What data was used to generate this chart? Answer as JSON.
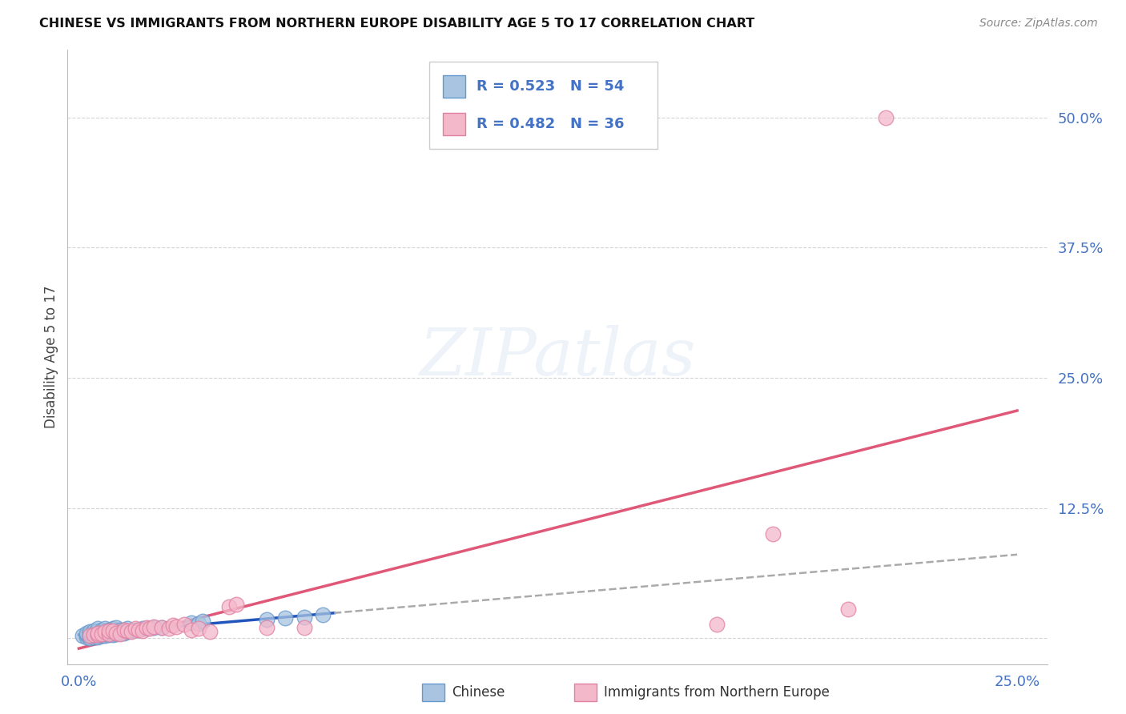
{
  "title": "CHINESE VS IMMIGRANTS FROM NORTHERN EUROPE DISABILITY AGE 5 TO 17 CORRELATION CHART",
  "source": "Source: ZipAtlas.com",
  "ylabel": "Disability Age 5 to 17",
  "xlim": [
    -0.003,
    0.258
  ],
  "ylim": [
    -0.025,
    0.565
  ],
  "xticks": [
    0.0,
    0.05,
    0.1,
    0.15,
    0.2,
    0.25
  ],
  "xticklabels": [
    "0.0%",
    "",
    "",
    "",
    "",
    "25.0%"
  ],
  "yticks": [
    0.0,
    0.125,
    0.25,
    0.375,
    0.5
  ],
  "yticklabels": [
    "",
    "12.5%",
    "25.0%",
    "37.5%",
    "50.0%"
  ],
  "background_color": "#ffffff",
  "grid_color": "#d0d0d0",
  "chinese_face": "#a8c4e0",
  "chinese_edge": "#6699cc",
  "ne_face": "#f4b8cb",
  "ne_edge": "#e080a0",
  "blue_line_color": "#2255bb",
  "pink_line_color": "#e05878",
  "dash_line_color": "#aaaaaa",
  "tick_color": "#4472c4",
  "chinese_x": [
    0.001,
    0.002,
    0.002,
    0.002,
    0.003,
    0.003,
    0.003,
    0.003,
    0.004,
    0.004,
    0.004,
    0.004,
    0.005,
    0.005,
    0.005,
    0.005,
    0.005,
    0.006,
    0.006,
    0.006,
    0.006,
    0.007,
    0.007,
    0.007,
    0.007,
    0.008,
    0.008,
    0.008,
    0.009,
    0.009,
    0.009,
    0.01,
    0.01,
    0.01,
    0.011,
    0.011,
    0.012,
    0.012,
    0.013,
    0.013,
    0.014,
    0.015,
    0.016,
    0.017,
    0.018,
    0.02,
    0.022,
    0.03,
    0.032,
    0.033,
    0.05,
    0.055,
    0.06,
    0.065
  ],
  "chinese_y": [
    0.002,
    0.001,
    0.003,
    0.005,
    0.0,
    0.002,
    0.004,
    0.006,
    0.001,
    0.003,
    0.005,
    0.007,
    0.001,
    0.003,
    0.005,
    0.007,
    0.009,
    0.002,
    0.004,
    0.006,
    0.008,
    0.002,
    0.004,
    0.006,
    0.009,
    0.003,
    0.006,
    0.008,
    0.003,
    0.006,
    0.009,
    0.004,
    0.007,
    0.01,
    0.005,
    0.008,
    0.005,
    0.008,
    0.006,
    0.009,
    0.007,
    0.008,
    0.008,
    0.009,
    0.009,
    0.01,
    0.01,
    0.015,
    0.014,
    0.016,
    0.018,
    0.019,
    0.02,
    0.022
  ],
  "ne_x": [
    0.003,
    0.004,
    0.005,
    0.005,
    0.006,
    0.007,
    0.008,
    0.008,
    0.009,
    0.01,
    0.011,
    0.012,
    0.013,
    0.014,
    0.015,
    0.016,
    0.017,
    0.018,
    0.019,
    0.02,
    0.022,
    0.024,
    0.025,
    0.026,
    0.028,
    0.03,
    0.032,
    0.035,
    0.04,
    0.042,
    0.05,
    0.06,
    0.17,
    0.185,
    0.205,
    0.215
  ],
  "ne_y": [
    0.002,
    0.003,
    0.003,
    0.005,
    0.004,
    0.006,
    0.004,
    0.007,
    0.007,
    0.005,
    0.004,
    0.008,
    0.007,
    0.006,
    0.009,
    0.008,
    0.007,
    0.01,
    0.009,
    0.011,
    0.01,
    0.009,
    0.012,
    0.011,
    0.013,
    0.008,
    0.009,
    0.006,
    0.03,
    0.032,
    0.01,
    0.01,
    0.013,
    0.1,
    0.028,
    0.5
  ],
  "blue_solid_xlim": [
    0.0,
    0.068
  ],
  "blue_dash_xlim": [
    0.068,
    0.25
  ],
  "pink_solid_xlim": [
    0.0,
    0.25
  ],
  "chinese_R": 0.523,
  "chinese_N": 54,
  "ne_R": 0.482,
  "ne_N": 36
}
